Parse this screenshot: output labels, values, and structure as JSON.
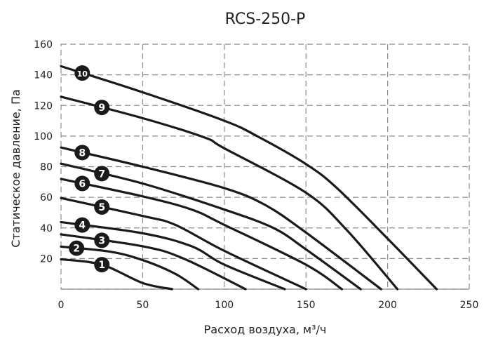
{
  "chart_data": {
    "type": "line",
    "title": "RCS-250-P",
    "xlabel": "Расход воздуха, м³/ч",
    "ylabel": "Статическое давление, Па",
    "xlim": [
      0,
      250
    ],
    "ylim": [
      0,
      160
    ],
    "xticks": [
      "0",
      "50",
      "100",
      "150",
      "200",
      "250"
    ],
    "yticks": [
      "20",
      "40",
      "60",
      "80",
      "100",
      "120",
      "140",
      "160"
    ],
    "grid": true,
    "line_color": "#1a1a1a",
    "grid_color": "#8c8c8c",
    "series": [
      {
        "name": "1",
        "label_x": 25,
        "points": [
          [
            0,
            19.5
          ],
          [
            25,
            16
          ],
          [
            50,
            4
          ],
          [
            68,
            0
          ]
        ]
      },
      {
        "name": "2",
        "label_x": 9.5,
        "points": [
          [
            0,
            27.8
          ],
          [
            30,
            24.5
          ],
          [
            50,
            19
          ],
          [
            70,
            10
          ],
          [
            84,
            0
          ]
        ]
      },
      {
        "name": "3",
        "label_x": 25,
        "points": [
          [
            0,
            35.8
          ],
          [
            50,
            28
          ],
          [
            75,
            20
          ],
          [
            113,
            0
          ]
        ]
      },
      {
        "name": "4",
        "label_x": 13,
        "points": [
          [
            0,
            43.8
          ],
          [
            50,
            36.5
          ],
          [
            80,
            28
          ],
          [
            100,
            16
          ],
          [
            137,
            0
          ]
        ]
      },
      {
        "name": "5",
        "label_x": 25,
        "points": [
          [
            0,
            59.5
          ],
          [
            50,
            47.8
          ],
          [
            70,
            42
          ],
          [
            100,
            25
          ],
          [
            150,
            0
          ]
        ]
      },
      {
        "name": "6",
        "label_x": 13,
        "points": [
          [
            0,
            72
          ],
          [
            50,
            60.6
          ],
          [
            80,
            52
          ],
          [
            100,
            42
          ],
          [
            150,
            16
          ],
          [
            172,
            0
          ]
        ]
      },
      {
        "name": "7",
        "label_x": 25,
        "points": [
          [
            0,
            82
          ],
          [
            50,
            69
          ],
          [
            100,
            52
          ],
          [
            130,
            40
          ],
          [
            150,
            26
          ],
          [
            183.5,
            0
          ]
        ]
      },
      {
        "name": "8",
        "label_x": 13,
        "points": [
          [
            0,
            92.5
          ],
          [
            50,
            80
          ],
          [
            100,
            66
          ],
          [
            125,
            55
          ],
          [
            150,
            37
          ],
          [
            196,
            0
          ]
        ]
      },
      {
        "name": "9",
        "label_x": 25,
        "points": [
          [
            0,
            125.7
          ],
          [
            50,
            111.7
          ],
          [
            88,
            99
          ],
          [
            100,
            92
          ],
          [
            150,
            63
          ],
          [
            175,
            38.6
          ],
          [
            206,
            0
          ]
        ]
      },
      {
        "name": "10",
        "label_x": 13,
        "points": [
          [
            0,
            145.6
          ],
          [
            50,
            128.6
          ],
          [
            100,
            110
          ],
          [
            120,
            100
          ],
          [
            150,
            81.7
          ],
          [
            169,
            66
          ],
          [
            200,
            33
          ],
          [
            230,
            0
          ]
        ]
      }
    ]
  }
}
